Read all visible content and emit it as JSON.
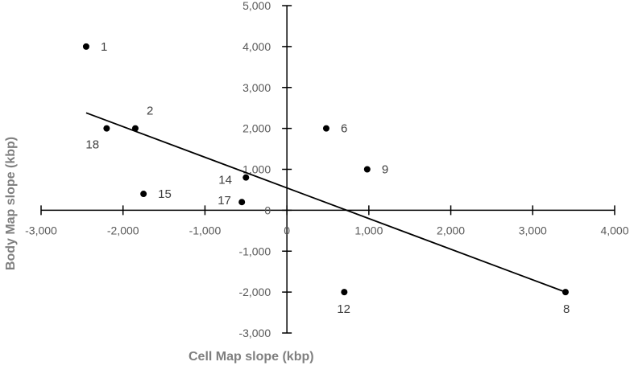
{
  "chart_data": {
    "type": "scatter",
    "xlabel": "Cell Map slope (kbp)",
    "ylabel": "Body Map slope (kbp)",
    "xlim": [
      -3000,
      4000
    ],
    "ylim": [
      -3000,
      5000
    ],
    "x_ticks": [
      "-3,000",
      "-2,000",
      "-1,000",
      "0",
      "1,000",
      "2,000",
      "3,000",
      "4,000"
    ],
    "y_ticks": [
      "-3,000",
      "-2,000",
      "-1,000",
      "0",
      "1,000",
      "2,000",
      "3,000",
      "4,000",
      "5,000"
    ],
    "grid": false,
    "legend": "none",
    "colors": {
      "axis": "#000000",
      "text": "#595959",
      "point": "#000000"
    },
    "points": [
      {
        "label": "1",
        "x": -2450,
        "y": 4000
      },
      {
        "label": "2",
        "x": -1850,
        "y": 2000
      },
      {
        "label": "18",
        "x": -2200,
        "y": 2000
      },
      {
        "label": "15",
        "x": -1750,
        "y": 400
      },
      {
        "label": "14",
        "x": -500,
        "y": 800
      },
      {
        "label": "17",
        "x": -550,
        "y": 200
      },
      {
        "label": "6",
        "x": 480,
        "y": 2000
      },
      {
        "label": "9",
        "x": 980,
        "y": 1000
      },
      {
        "label": "12",
        "x": 700,
        "y": -2000
      },
      {
        "label": "8",
        "x": 3400,
        "y": -2000
      }
    ],
    "trendline": {
      "x1": -2450,
      "y1": 2380,
      "x2": 3400,
      "y2": -2000
    }
  }
}
